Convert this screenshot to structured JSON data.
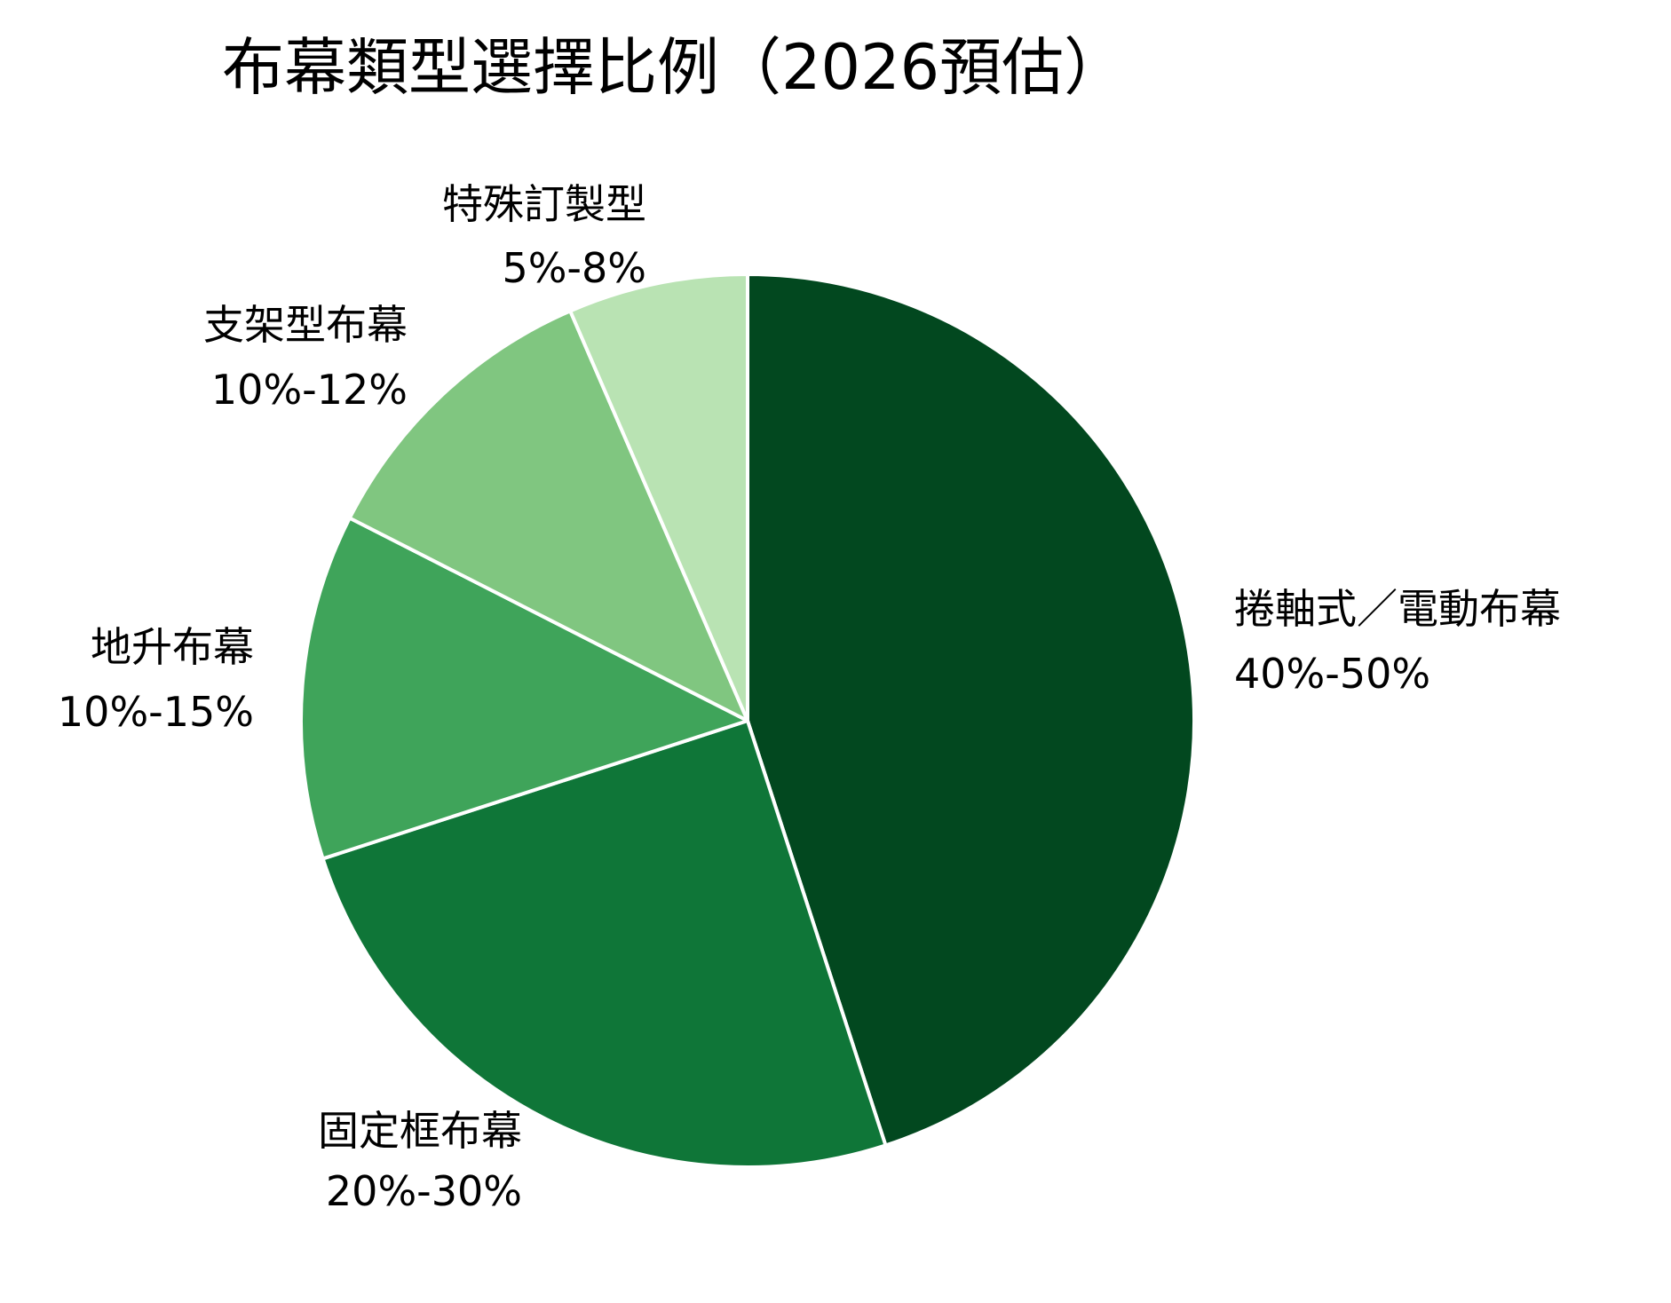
{
  "chart_data": {
    "type": "pie",
    "title": "布幕類型選擇比例（2026預估）",
    "start_angle_deg": 0,
    "direction": "clockwise",
    "slices": [
      {
        "name": "捲軸式／電動布幕",
        "range_label": "40%-50%",
        "value": 45,
        "color": "#02481f"
      },
      {
        "name": "固定框布幕",
        "range_label": "20%-30%",
        "value": 25,
        "color": "#0f7638"
      },
      {
        "name": "地升布幕",
        "range_label": "10%-15%",
        "value": 12.5,
        "color": "#3fa45a"
      },
      {
        "name": "支架型布幕",
        "range_label": "10%-12%",
        "value": 11,
        "color": "#80c680"
      },
      {
        "name": "特殊訂製型",
        "range_label": "5%-8%",
        "value": 6.5,
        "color": "#b9e3b3"
      }
    ],
    "legend": "none"
  }
}
